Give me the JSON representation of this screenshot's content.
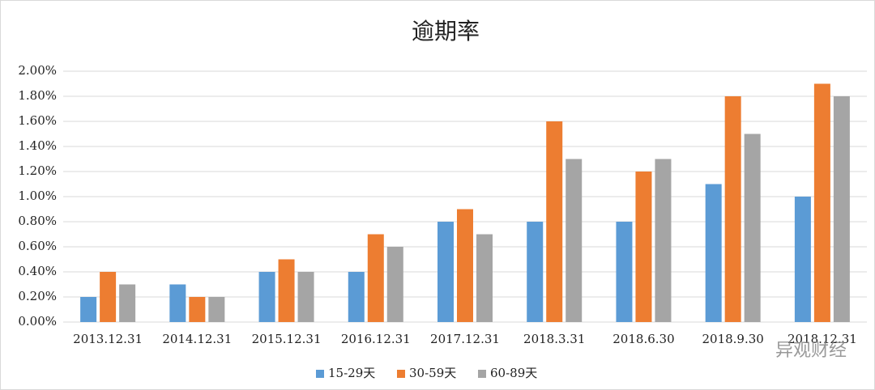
{
  "chart_data": {
    "type": "bar",
    "title": "逾期率",
    "categories": [
      "2013.12.31",
      "2014.12.31",
      "2015.12.31",
      "2016.12.31",
      "2017.12.31",
      "2018.3.31",
      "2018.6.30",
      "2018.9.30",
      "2018.12.31"
    ],
    "series": [
      {
        "name": "15-29天",
        "color": "#5b9bd5",
        "values": [
          0.2,
          0.3,
          0.4,
          0.4,
          0.8,
          0.8,
          0.8,
          1.1,
          1.0
        ]
      },
      {
        "name": "30-59天",
        "color": "#ed7d31",
        "values": [
          0.4,
          0.2,
          0.5,
          0.7,
          0.9,
          1.6,
          1.2,
          1.8,
          1.9
        ]
      },
      {
        "name": "60-89天",
        "color": "#a5a5a5",
        "values": [
          0.3,
          0.2,
          0.4,
          0.6,
          0.7,
          1.3,
          1.3,
          1.5,
          1.8
        ]
      }
    ],
    "ylim": [
      0,
      2
    ],
    "yticks": [
      {
        "value": 0,
        "label": "0.00%"
      },
      {
        "value": 0.2,
        "label": "0.20%"
      },
      {
        "value": 0.4,
        "label": "0.40%"
      },
      {
        "value": 0.6,
        "label": "0.60%"
      },
      {
        "value": 0.8,
        "label": "0.80%"
      },
      {
        "value": 1.0,
        "label": "1.00%"
      },
      {
        "value": 1.2,
        "label": "1.20%"
      },
      {
        "value": 1.4,
        "label": "1.40%"
      },
      {
        "value": 1.6,
        "label": "1.60%"
      },
      {
        "value": 1.8,
        "label": "1.80%"
      },
      {
        "value": 2.0,
        "label": "2.00%"
      }
    ],
    "grid": true,
    "legend": "bottom",
    "watermark": "异观财经"
  }
}
